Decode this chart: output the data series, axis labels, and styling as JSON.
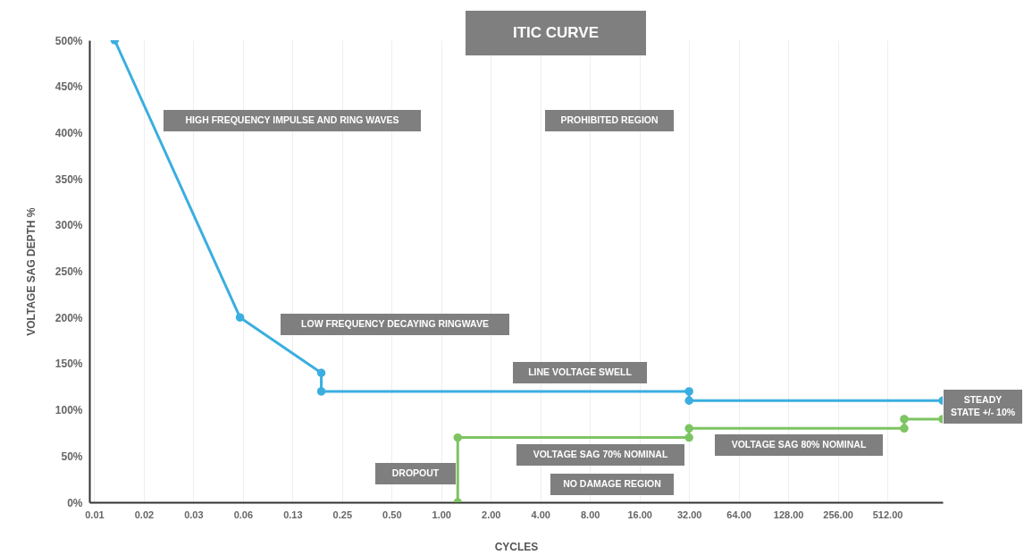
{
  "chart_data": {
    "type": "line",
    "title": "ITIC CURVE",
    "xlabel": "CYCLES",
    "ylabel": "VOLTAGE SAG DEPTH %",
    "log": "x",
    "grid": "x",
    "legend": false,
    "marker": "circle",
    "line_style": "solid",
    "xlim": [
      0.0073,
      1110
    ],
    "ylim": [
      0,
      500
    ],
    "xticks": [
      {
        "value": 0.0078125,
        "label": "0.01"
      },
      {
        "value": 0.015625,
        "label": "0.02"
      },
      {
        "value": 0.03125,
        "label": "0.03"
      },
      {
        "value": 0.0625,
        "label": "0.06"
      },
      {
        "value": 0.125,
        "label": "0.13"
      },
      {
        "value": 0.25,
        "label": "0.25"
      },
      {
        "value": 0.5,
        "label": "0.50"
      },
      {
        "value": 1,
        "label": "1.00"
      },
      {
        "value": 2,
        "label": "2.00"
      },
      {
        "value": 4,
        "label": "4.00"
      },
      {
        "value": 8,
        "label": "8.00"
      },
      {
        "value": 16,
        "label": "16.00"
      },
      {
        "value": 32,
        "label": "32.00"
      },
      {
        "value": 64,
        "label": "64.00"
      },
      {
        "value": 128,
        "label": "128.00"
      },
      {
        "value": 256,
        "label": "256.00"
      },
      {
        "value": 512,
        "label": "512.00"
      }
    ],
    "yticks": [
      {
        "value": 0,
        "label": "0%"
      },
      {
        "value": 50,
        "label": "50%"
      },
      {
        "value": 100,
        "label": "100%"
      },
      {
        "value": 150,
        "label": "150%"
      },
      {
        "value": 200,
        "label": "200%"
      },
      {
        "value": 250,
        "label": "250%"
      },
      {
        "value": 300,
        "label": "300%"
      },
      {
        "value": 350,
        "label": "350%"
      },
      {
        "value": 400,
        "label": "400%"
      },
      {
        "value": 450,
        "label": "450%"
      },
      {
        "value": 500,
        "label": "500%"
      }
    ],
    "series": [
      {
        "color": "#3aaee0",
        "x": [
          0.0104,
          0.06,
          0.187,
          0.187,
          32,
          32,
          1110
        ],
        "values": [
          500,
          200,
          140,
          120,
          120,
          110,
          110
        ]
      },
      {
        "color": "#7dc462",
        "x": [
          1.26,
          1.26,
          32,
          32,
          648,
          648,
          1110
        ],
        "values": [
          0,
          70,
          70,
          80,
          80,
          90,
          90
        ]
      }
    ],
    "annotations": [
      "HIGH FREQUENCY IMPULSE AND RING WAVES",
      "PROHIBITED REGION",
      "LOW FREQUENCY DECAYING RINGWAVE",
      "LINE VOLTAGE SWELL",
      "STEADY\nSTATE +/- 10%",
      "VOLTAGE SAG 70% NOMINAL",
      "VOLTAGE SAG 80% NOMINAL",
      "DROPOUT",
      "NO DAMAGE REGION"
    ]
  }
}
